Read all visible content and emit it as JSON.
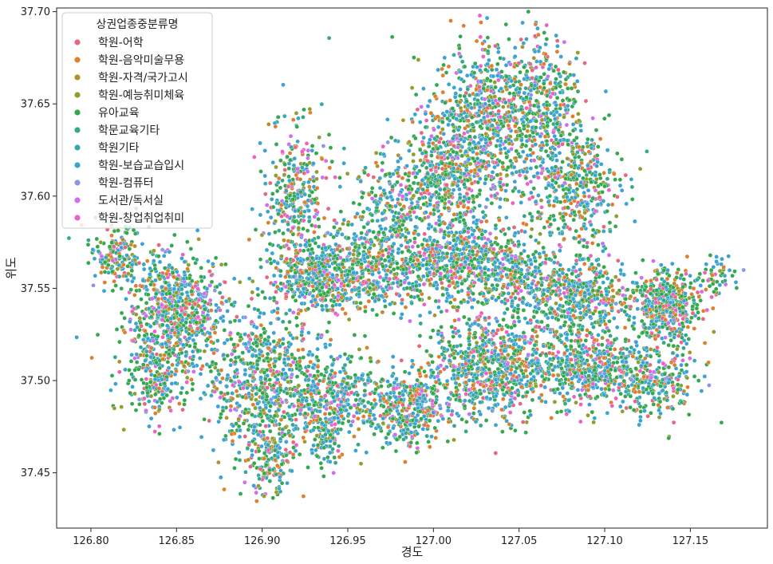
{
  "chart_data": {
    "type": "scatter",
    "xlabel": "경도",
    "ylabel": "위도",
    "xlim": [
      126.78,
      127.195
    ],
    "ylim": [
      37.42,
      37.702
    ],
    "xticks": [
      126.8,
      126.85,
      126.9,
      126.95,
      127.0,
      127.05,
      127.1,
      127.15
    ],
    "xtick_labels": [
      "126.80",
      "126.85",
      "126.90",
      "126.95",
      "127.00",
      "127.05",
      "127.10",
      "127.15"
    ],
    "yticks": [
      37.45,
      37.5,
      37.55,
      37.6,
      37.65,
      37.7
    ],
    "ytick_labels": [
      "37.45",
      "37.50",
      "37.55",
      "37.60",
      "37.65",
      "37.70"
    ],
    "grid": false,
    "legend": {
      "title": "상권업종중분류명",
      "placement": "top-left",
      "entries": [
        {
          "name": "학원-어학",
          "color": "#e8667e"
        },
        {
          "name": "학원-음악미술무용",
          "color": "#dd7f2e"
        },
        {
          "name": "학원-자격/국가고시",
          "color": "#b1912d"
        },
        {
          "name": "학원-예능취미체육",
          "color": "#8f9f2f"
        },
        {
          "name": "유아교육",
          "color": "#33a84d"
        },
        {
          "name": "학문교육기타",
          "color": "#35a88a"
        },
        {
          "name": "학원기타",
          "color": "#37a7a8"
        },
        {
          "name": "학원-보습교습입시",
          "color": "#3aa3d2"
        },
        {
          "name": "학원-컴퓨터",
          "color": "#8b96e5"
        },
        {
          "name": "도서관/독서실",
          "color": "#cf6ef0"
        },
        {
          "name": "학원-창업취업취미",
          "color": "#ea63c4"
        }
      ]
    },
    "series_weights": [
      5,
      10,
      3,
      5,
      30,
      6,
      2,
      30,
      1,
      4,
      4
    ],
    "clusters": [
      {
        "cx": 126.815,
        "cy": 37.568,
        "sx": 0.008,
        "sy": 0.008,
        "n": 160
      },
      {
        "cx": 126.848,
        "cy": 37.537,
        "sx": 0.014,
        "sy": 0.016,
        "n": 750
      },
      {
        "cx": 126.838,
        "cy": 37.502,
        "sx": 0.01,
        "sy": 0.012,
        "n": 200
      },
      {
        "cx": 126.9,
        "cy": 37.5,
        "sx": 0.016,
        "sy": 0.022,
        "n": 650
      },
      {
        "cx": 126.905,
        "cy": 37.458,
        "sx": 0.008,
        "sy": 0.01,
        "n": 150
      },
      {
        "cx": 126.94,
        "cy": 37.492,
        "sx": 0.016,
        "sy": 0.012,
        "n": 400
      },
      {
        "cx": 126.938,
        "cy": 37.47,
        "sx": 0.006,
        "sy": 0.008,
        "n": 100
      },
      {
        "cx": 126.985,
        "cy": 37.485,
        "sx": 0.012,
        "sy": 0.01,
        "n": 400
      },
      {
        "cx": 127.035,
        "cy": 37.508,
        "sx": 0.018,
        "sy": 0.014,
        "n": 800
      },
      {
        "cx": 127.092,
        "cy": 37.505,
        "sx": 0.016,
        "sy": 0.009,
        "n": 450
      },
      {
        "cx": 127.13,
        "cy": 37.5,
        "sx": 0.012,
        "sy": 0.01,
        "n": 250
      },
      {
        "cx": 127.135,
        "cy": 37.54,
        "sx": 0.01,
        "sy": 0.01,
        "n": 450
      },
      {
        "cx": 127.085,
        "cy": 37.545,
        "sx": 0.014,
        "sy": 0.012,
        "n": 500
      },
      {
        "cx": 127.045,
        "cy": 37.56,
        "sx": 0.012,
        "sy": 0.01,
        "n": 300
      },
      {
        "cx": 127.01,
        "cy": 37.565,
        "sx": 0.016,
        "sy": 0.012,
        "n": 500
      },
      {
        "cx": 126.96,
        "cy": 37.56,
        "sx": 0.018,
        "sy": 0.012,
        "n": 500
      },
      {
        "cx": 126.92,
        "cy": 37.6,
        "sx": 0.01,
        "sy": 0.02,
        "n": 350
      },
      {
        "cx": 126.93,
        "cy": 37.555,
        "sx": 0.012,
        "sy": 0.008,
        "n": 300
      },
      {
        "cx": 127.03,
        "cy": 37.64,
        "sx": 0.016,
        "sy": 0.022,
        "n": 750
      },
      {
        "cx": 127.065,
        "cy": 37.65,
        "sx": 0.01,
        "sy": 0.02,
        "n": 350
      },
      {
        "cx": 127.085,
        "cy": 37.605,
        "sx": 0.012,
        "sy": 0.016,
        "n": 400
      },
      {
        "cx": 127.005,
        "cy": 37.61,
        "sx": 0.014,
        "sy": 0.016,
        "n": 450
      },
      {
        "cx": 126.975,
        "cy": 37.595,
        "sx": 0.01,
        "sy": 0.012,
        "n": 200
      },
      {
        "cx": 127.165,
        "cy": 37.555,
        "sx": 0.006,
        "sy": 0.006,
        "n": 50
      }
    ]
  }
}
